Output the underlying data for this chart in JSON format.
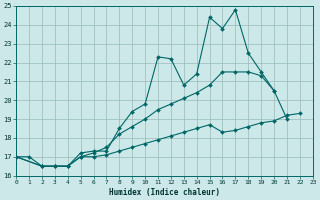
{
  "xlabel": "Humidex (Indice chaleur)",
  "xlim": [
    0,
    23
  ],
  "ylim": [
    16,
    25
  ],
  "yticks": [
    16,
    17,
    18,
    19,
    20,
    21,
    22,
    23,
    24,
    25
  ],
  "xticks": [
    0,
    1,
    2,
    3,
    4,
    5,
    6,
    7,
    8,
    9,
    10,
    11,
    12,
    13,
    14,
    15,
    16,
    17,
    18,
    19,
    20,
    21,
    22,
    23
  ],
  "bg_color": "#cce8e8",
  "grid_color": "#99bbbb",
  "line_color": "#006666",
  "line1_x": [
    0,
    1,
    2,
    3,
    4,
    5,
    6,
    7,
    8,
    9,
    10,
    11,
    12,
    13,
    14,
    15,
    16,
    17,
    18,
    19,
    20,
    21
  ],
  "line1_y": [
    17.0,
    17.0,
    16.5,
    16.5,
    16.5,
    17.2,
    17.3,
    17.3,
    18.5,
    19.4,
    19.8,
    22.3,
    22.2,
    20.8,
    21.4,
    24.4,
    23.8,
    24.8,
    22.5,
    21.5,
    20.5,
    19.0
  ],
  "line2_x": [
    0,
    2,
    3,
    4,
    5,
    6,
    7,
    8,
    9,
    10,
    11,
    12,
    13,
    14,
    15,
    16,
    17,
    18,
    19,
    20
  ],
  "line2_y": [
    17.0,
    16.5,
    16.5,
    16.5,
    17.0,
    17.2,
    17.5,
    18.2,
    18.6,
    19.0,
    19.5,
    19.8,
    20.1,
    20.4,
    20.8,
    21.5,
    21.5,
    21.5,
    21.3,
    20.5
  ],
  "line3_x": [
    0,
    2,
    3,
    4,
    5,
    6,
    7,
    8,
    9,
    10,
    11,
    12,
    13,
    14,
    15,
    16,
    17,
    18,
    19,
    20,
    21,
    22
  ],
  "line3_y": [
    17.0,
    16.5,
    16.5,
    16.5,
    17.0,
    17.0,
    17.1,
    17.3,
    17.5,
    17.7,
    17.9,
    18.1,
    18.3,
    18.5,
    18.7,
    18.3,
    18.4,
    18.6,
    18.8,
    18.9,
    19.2,
    19.3
  ]
}
